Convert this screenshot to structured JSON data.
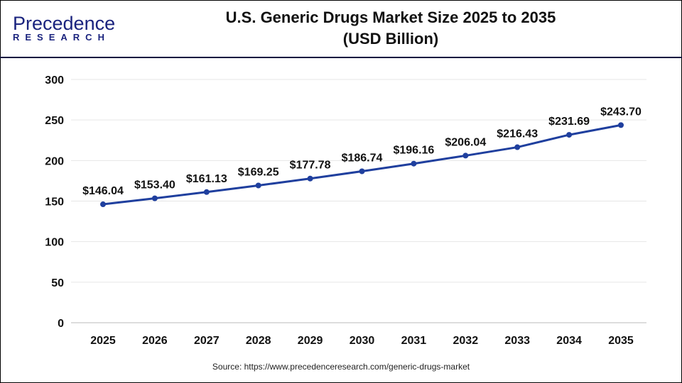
{
  "logo": {
    "line1": "Precedence",
    "line2": "RESEARCH"
  },
  "header": {
    "title_line1": "U.S. Generic Drugs Market Size 2025 to 2035",
    "title_line2": "(USD Billion)"
  },
  "source": "Source: https://www.precedenceresearch.com/generic-drugs-market",
  "chart_data": {
    "type": "line",
    "title": "U.S. Generic Drugs Market Size 2025 to 2035 (USD Billion)",
    "categories": [
      "2025",
      "2026",
      "2027",
      "2028",
      "2029",
      "2030",
      "2031",
      "2032",
      "2033",
      "2034",
      "2035"
    ],
    "values": [
      146.04,
      153.4,
      161.13,
      169.25,
      177.78,
      186.74,
      196.16,
      206.04,
      216.43,
      231.69,
      243.7
    ],
    "data_labels": [
      "$146.04",
      "$153.40",
      "$161.13",
      "$169.25",
      "$177.78",
      "$186.74",
      "$196.16",
      "$206.04",
      "$216.43",
      "$231.69",
      "$243.70"
    ],
    "yticks": [
      "0",
      "50",
      "100",
      "150",
      "200",
      "250",
      "300"
    ],
    "ylim": [
      0,
      300
    ],
    "grid": true,
    "line_color": "#1f3f9e"
  }
}
